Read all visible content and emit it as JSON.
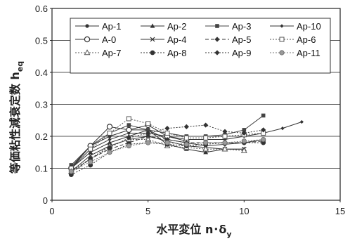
{
  "chart_data": {
    "type": "line",
    "xlabel": "水平変位 n･δ",
    "xlabel_sub": "y",
    "ylabel": "等価粘性減衰定数 h",
    "ylabel_sub": "eq",
    "xlim": [
      0,
      15
    ],
    "ylim": [
      0,
      0.6
    ],
    "xticks": [
      0,
      5,
      10,
      15
    ],
    "yticks": [
      0,
      0.1,
      0.2,
      0.3,
      0.4,
      0.5,
      0.6
    ],
    "grid": "horizontal",
    "legend_position": "top",
    "series": [
      {
        "name": "Ap-1",
        "marker": "circle-filled",
        "dash": "solid",
        "color": "#333333",
        "x": [
          1,
          2,
          3,
          4,
          5,
          6,
          7,
          8,
          9,
          10,
          11
        ],
        "y": [
          0.105,
          0.17,
          0.2,
          0.22,
          0.22,
          0.19,
          0.18,
          0.17,
          0.175,
          0.18,
          0.19
        ]
      },
      {
        "name": "Ap-2",
        "marker": "triangle-filled",
        "dash": "solid",
        "color": "#333333",
        "x": [
          1,
          2,
          3,
          4,
          5,
          6,
          7,
          8,
          9,
          10
        ],
        "y": [
          0.1,
          0.15,
          0.18,
          0.2,
          0.22,
          0.175,
          0.16,
          0.15,
          0.16,
          0.16
        ]
      },
      {
        "name": "Ap-3",
        "marker": "square-filled",
        "dash": "solid",
        "color": "#444444",
        "x": [
          1,
          2,
          3,
          4,
          5,
          6,
          7,
          8,
          9,
          10,
          11
        ],
        "y": [
          0.11,
          0.17,
          0.21,
          0.235,
          0.22,
          0.21,
          0.2,
          0.2,
          0.205,
          0.22,
          0.265
        ]
      },
      {
        "name": "Ap-10",
        "marker": "diamond-small",
        "dash": "solid",
        "color": "#333333",
        "x": [
          1,
          2,
          3,
          4,
          5,
          6,
          7,
          8,
          9,
          10,
          11,
          12,
          13
        ],
        "y": [
          0.1,
          0.16,
          0.19,
          0.21,
          0.21,
          0.2,
          0.19,
          0.19,
          0.19,
          0.2,
          0.21,
          0.225,
          0.245
        ]
      },
      {
        "name": "A-0",
        "marker": "circle-open",
        "dash": "solid",
        "color": "#333333",
        "x": [
          1,
          2,
          3,
          4,
          5,
          6,
          7
        ],
        "y": [
          0.1,
          0.17,
          0.23,
          0.22,
          0.235,
          0.2,
          0.185
        ]
      },
      {
        "name": "Ap-4",
        "marker": "x",
        "dash": "solid",
        "color": "#333333",
        "x": [
          1,
          2,
          3,
          4,
          5,
          6,
          7,
          8,
          9,
          10
        ],
        "y": [
          0.09,
          0.14,
          0.17,
          0.19,
          0.2,
          0.185,
          0.17,
          0.165,
          0.16,
          0.16
        ]
      },
      {
        "name": "Ap-5",
        "marker": "diamond-filled",
        "dash": "dashed",
        "color": "#333333",
        "x": [
          1,
          2,
          3,
          4,
          5,
          6,
          7,
          8,
          9,
          10,
          11
        ],
        "y": [
          0.085,
          0.13,
          0.16,
          0.18,
          0.2,
          0.19,
          0.18,
          0.18,
          0.18,
          0.18,
          0.185
        ]
      },
      {
        "name": "Ap-6",
        "marker": "square-open",
        "dash": "dotted",
        "color": "#555555",
        "x": [
          1,
          2,
          3,
          4,
          5,
          6,
          7,
          8,
          9,
          10,
          11
        ],
        "y": [
          0.1,
          0.16,
          0.21,
          0.255,
          0.24,
          0.21,
          0.195,
          0.195,
          0.2,
          0.205,
          0.21
        ]
      },
      {
        "name": "Ap-7",
        "marker": "triangle-open",
        "dash": "dotted",
        "color": "#555555",
        "x": [
          1,
          2,
          3,
          4,
          5,
          6,
          7,
          8,
          9,
          10
        ],
        "y": [
          0.09,
          0.13,
          0.17,
          0.19,
          0.19,
          0.17,
          0.165,
          0.16,
          0.16,
          0.155
        ]
      },
      {
        "name": "Ap-8",
        "marker": "circle-filled-large",
        "dash": "dotted",
        "color": "#333333",
        "x": [
          1,
          2,
          3,
          4,
          5,
          6,
          7,
          8,
          9,
          10,
          11
        ],
        "y": [
          0.08,
          0.11,
          0.15,
          0.175,
          0.18,
          0.175,
          0.17,
          0.175,
          0.18,
          0.18,
          0.18
        ]
      },
      {
        "name": "Ap-9",
        "marker": "diamond-filled",
        "dash": "dotted",
        "color": "#333333",
        "x": [
          1,
          2,
          3,
          4,
          5,
          6,
          7,
          8,
          9,
          10,
          11
        ],
        "y": [
          0.09,
          0.13,
          0.165,
          0.195,
          0.21,
          0.225,
          0.23,
          0.235,
          0.215,
          0.21,
          0.22
        ]
      },
      {
        "name": "Ap-11",
        "marker": "circle-gray",
        "dash": "dotted",
        "color": "#777777",
        "x": [
          1,
          2,
          3,
          4,
          5,
          6,
          7,
          8,
          9,
          10,
          11
        ],
        "y": [
          0.09,
          0.12,
          0.15,
          0.17,
          0.18,
          0.18,
          0.175,
          0.18,
          0.18,
          0.185,
          0.19
        ]
      }
    ]
  }
}
